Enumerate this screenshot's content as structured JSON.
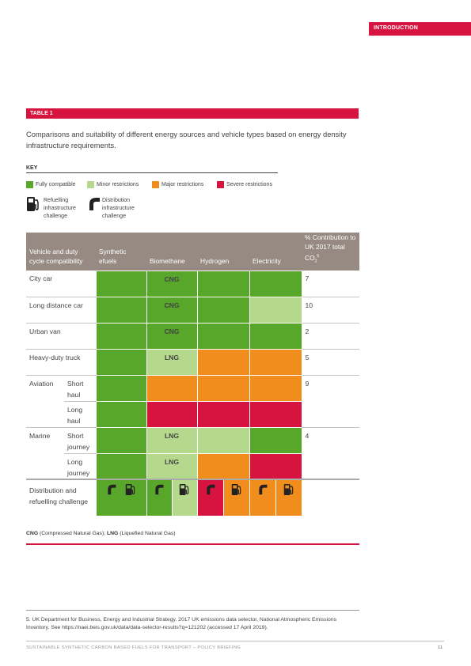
{
  "header": {
    "section": "INTRODUCTION"
  },
  "table_tag": "TABLE 1",
  "caption": "Comparisons and suitability of different energy sources and vehicle types based on energy density infrastructure requirements.",
  "key": {
    "title": "KEY",
    "items": [
      {
        "label": "Fully compatible",
        "color": "#58a62a"
      },
      {
        "label": "Minor restrictions",
        "color": "#b4d88c"
      },
      {
        "label": "Major restrictions",
        "color": "#f18d1c"
      },
      {
        "label": "Severe restrictions",
        "color": "#d7143f"
      }
    ],
    "refuelling_label": "Refuelling infrastructure challenge",
    "refuelling_lines": [
      "Refuelling",
      "infrastructure",
      "challenge"
    ],
    "distribution_lines": [
      "Distribution",
      "infrastructure",
      "challenge"
    ]
  },
  "table": {
    "headers": {
      "vehicle": "Vehicle and duty cycle compatibility",
      "synthetic": "Synthetic efuels",
      "biomethane": "Biomethane",
      "hydrogen": "Hydrogen",
      "electricity": "Electricity",
      "contribution": "% Contribution to UK 2017 total CO",
      "contribution_sub": "2",
      "contribution_sup": "5"
    },
    "rows": {
      "city_car": {
        "label": "City car",
        "bio_text": "CNG",
        "pct": "7"
      },
      "long_car": {
        "label": "Long distance car",
        "bio_text": "CNG",
        "pct": "10"
      },
      "urban_van": {
        "label": "Urban van",
        "bio_text": "CNG",
        "pct": "2"
      },
      "truck": {
        "label": "Heavy-duty truck",
        "bio_text": "LNG",
        "pct": "5"
      },
      "aviation": {
        "label": "Aviation",
        "short": "Short haul",
        "long": "Long haul",
        "pct": "9"
      },
      "marine": {
        "label": "Marine",
        "short": "Short journey",
        "long": "Long journey",
        "bio_short": "LNG",
        "bio_long": "LNG",
        "pct": "4"
      },
      "challenge": {
        "label": "Distribution and refuelling challenge"
      }
    }
  },
  "notes": {
    "cng_abbr": "CNG",
    "cng_text": "(Compressed Natural Gas); ",
    "lng_abbr": "LNG",
    "lng_text": "(Liquefied Natural Gas)"
  },
  "footnote": "5.  UK Department for Business, Energy and Industrial Strategy. 2017 UK emissions data selector, National Atmospheric Emissions Inventory. See https://naei.beis.gov.uk/data/data-selector-results?q=121202 (accessed 17 April 2019).",
  "footer": {
    "text": "SUSTAINABLE SYNTHETIC CARBON BASED FUELS FOR TRANSPORT – POLICY BRIEFING",
    "page": "11"
  }
}
